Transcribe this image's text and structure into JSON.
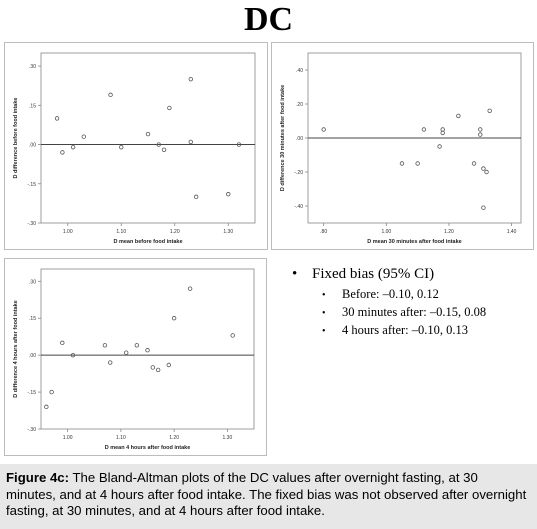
{
  "main_title": "DC",
  "bias_box": {
    "heading_bullet": "•",
    "heading": "Fixed bias (95% CI)",
    "item_bullet": "•",
    "items": [
      "Before: –0.10, 0.12",
      "30 minutes after: –0.15, 0.08",
      "4 hours after: –0.10, 0.13"
    ]
  },
  "caption": {
    "label": "Figure 4c:",
    "text": " The Bland-Altman plots of the DC values after overnight fasting, at 30 minutes, and at 4 hours after food intake. The fixed bias was not observed after overnight fasting, at 30 minutes, and at 4 hours after food intake."
  },
  "colors": {
    "frame": "#bcbcbc",
    "marker": "#555555",
    "line": "#444444",
    "caption_bg": "#e7e7e7"
  },
  "chart_data": [
    {
      "type": "scatter",
      "title": "",
      "xlabel": "D mean before food intake",
      "ylabel": "D difference before food intake",
      "xlim": [
        0.95,
        1.35
      ],
      "ylim": [
        -0.3,
        0.35
      ],
      "xticks": [
        1.0,
        1.1,
        1.2,
        1.3
      ],
      "xtick_labels": [
        "1.00",
        "1.10",
        "1.20",
        "1.30"
      ],
      "yticks": [
        -0.3,
        -0.15,
        0.0,
        0.15,
        0.3
      ],
      "ytick_labels": [
        "-.30",
        "-.15",
        ".00",
        ".15",
        ".30"
      ],
      "reference_line": 0.0,
      "points": [
        {
          "x": 0.98,
          "y": 0.1
        },
        {
          "x": 0.99,
          "y": -0.03
        },
        {
          "x": 1.01,
          "y": -0.01
        },
        {
          "x": 1.03,
          "y": 0.03
        },
        {
          "x": 1.08,
          "y": 0.19
        },
        {
          "x": 1.1,
          "y": -0.01
        },
        {
          "x": 1.15,
          "y": 0.04
        },
        {
          "x": 1.17,
          "y": 0.0
        },
        {
          "x": 1.18,
          "y": -0.02
        },
        {
          "x": 1.19,
          "y": 0.14
        },
        {
          "x": 1.23,
          "y": 0.25
        },
        {
          "x": 1.23,
          "y": 0.01
        },
        {
          "x": 1.24,
          "y": -0.2
        },
        {
          "x": 1.3,
          "y": -0.19
        },
        {
          "x": 1.32,
          "y": 0.0
        }
      ]
    },
    {
      "type": "scatter",
      "title": "",
      "xlabel": "D mean 30 minutes after food intake",
      "ylabel": "D difference 30 minutes after food intake",
      "xlim": [
        0.75,
        1.43
      ],
      "ylim": [
        -0.5,
        0.5
      ],
      "xticks": [
        0.8,
        1.0,
        1.2,
        1.4
      ],
      "xtick_labels": [
        ".80",
        "1.00",
        "1.20",
        "1.40"
      ],
      "yticks": [
        -0.4,
        -0.2,
        0.0,
        0.2,
        0.4
      ],
      "ytick_labels": [
        "-.40",
        "-.20",
        ".00",
        ".20",
        ".40"
      ],
      "reference_line": 0.0,
      "points": [
        {
          "x": 0.8,
          "y": 0.05
        },
        {
          "x": 1.05,
          "y": -0.15
        },
        {
          "x": 1.1,
          "y": -0.15
        },
        {
          "x": 1.12,
          "y": 0.05
        },
        {
          "x": 1.17,
          "y": -0.05
        },
        {
          "x": 1.18,
          "y": 0.05
        },
        {
          "x": 1.18,
          "y": 0.03
        },
        {
          "x": 1.23,
          "y": 0.13
        },
        {
          "x": 1.28,
          "y": -0.15
        },
        {
          "x": 1.3,
          "y": 0.05
        },
        {
          "x": 1.3,
          "y": 0.02
        },
        {
          "x": 1.31,
          "y": -0.18
        },
        {
          "x": 1.32,
          "y": -0.2
        },
        {
          "x": 1.33,
          "y": 0.16
        },
        {
          "x": 1.31,
          "y": -0.41
        }
      ]
    },
    {
      "type": "scatter",
      "title": "",
      "xlabel": "D mean 4 hours after food intake",
      "ylabel": "D difference 4 hours after food intake",
      "xlim": [
        0.95,
        1.35
      ],
      "ylim": [
        -0.3,
        0.35
      ],
      "xticks": [
        1.0,
        1.1,
        1.2,
        1.3
      ],
      "xtick_labels": [
        "1.00",
        "1.10",
        "1.20",
        "1.30"
      ],
      "yticks": [
        -0.3,
        -0.15,
        0.0,
        0.15,
        0.3
      ],
      "ytick_labels": [
        "-.30",
        "-.15",
        ".00",
        ".15",
        ".30"
      ],
      "reference_line": 0.0,
      "points": [
        {
          "x": 0.96,
          "y": -0.21
        },
        {
          "x": 0.97,
          "y": -0.15
        },
        {
          "x": 0.99,
          "y": 0.05
        },
        {
          "x": 1.01,
          "y": 0.0
        },
        {
          "x": 1.07,
          "y": 0.04
        },
        {
          "x": 1.08,
          "y": -0.03
        },
        {
          "x": 1.11,
          "y": 0.01
        },
        {
          "x": 1.13,
          "y": 0.04
        },
        {
          "x": 1.15,
          "y": 0.02
        },
        {
          "x": 1.16,
          "y": -0.05
        },
        {
          "x": 1.17,
          "y": -0.06
        },
        {
          "x": 1.19,
          "y": -0.04
        },
        {
          "x": 1.2,
          "y": 0.15
        },
        {
          "x": 1.23,
          "y": 0.27
        },
        {
          "x": 1.31,
          "y": 0.08
        }
      ]
    }
  ]
}
